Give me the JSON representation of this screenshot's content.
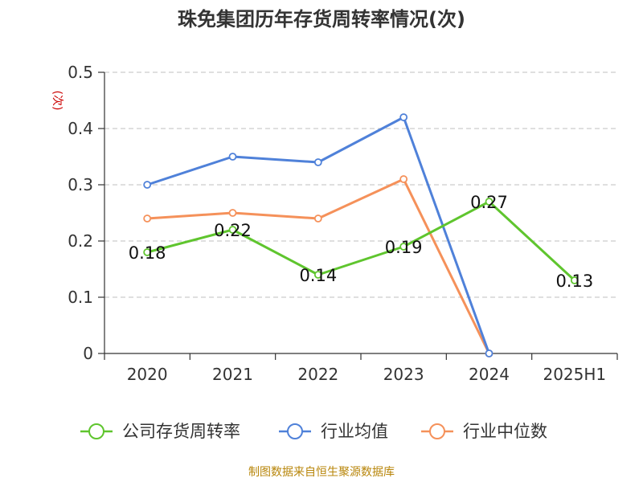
{
  "chart_data": {
    "type": "line",
    "title": "珠免集团历年存货周转率情况(次)",
    "ylabel": "(次)",
    "xlabel": "",
    "categories": [
      "2020",
      "2021",
      "2022",
      "2023",
      "2024",
      "2025H1"
    ],
    "ylim": [
      0,
      0.5
    ],
    "yticks": [
      0,
      0.1,
      0.2,
      0.3,
      0.4,
      0.5
    ],
    "ytick_labels": [
      "0",
      "0.1",
      "0.2",
      "0.3",
      "0.4",
      "0.5"
    ],
    "grid": "horizontal-dashed",
    "legend_position": "bottom",
    "series": [
      {
        "name": "公司存货周转率",
        "color": "#5fc52e",
        "values": [
          0.18,
          0.22,
          0.14,
          0.19,
          0.27,
          0.13
        ],
        "labels": [
          "0.18",
          "0.22",
          "0.14",
          "0.19",
          "0.27",
          "0.13"
        ]
      },
      {
        "name": "行业均值",
        "color": "#4f81d9",
        "values": [
          0.3,
          0.35,
          0.34,
          0.42,
          0,
          null
        ]
      },
      {
        "name": "行业中位数",
        "color": "#f5915a",
        "values": [
          0.24,
          0.25,
          0.24,
          0.31,
          0,
          null
        ]
      }
    ]
  },
  "source": "制图数据来自恒生聚源数据库"
}
